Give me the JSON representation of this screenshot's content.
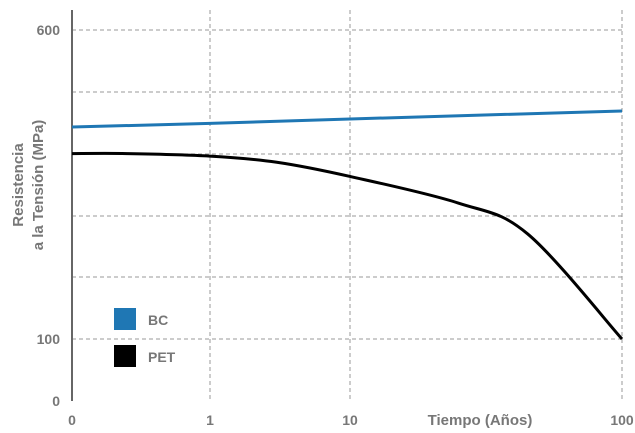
{
  "chart_data": {
    "type": "line",
    "title": "",
    "xlabel": "Tiempo (Años)",
    "ylabel_lines": [
      "Resistencia",
      "a la Tensión (MPa)"
    ],
    "x_scale": "log",
    "x_ticks": [
      {
        "value": 0,
        "label": "0"
      },
      {
        "value": 1,
        "label": "1"
      },
      {
        "value": 10,
        "label": "10"
      },
      {
        "value": 100,
        "label": "100"
      }
    ],
    "y_ticks": [
      {
        "value": 0,
        "label": "0"
      },
      {
        "value": 100,
        "label": "100"
      },
      {
        "value": 600,
        "label": "600"
      }
    ],
    "ylim": [
      0,
      600
    ],
    "grid": true,
    "legend_position": "bottom-left",
    "series": [
      {
        "name": "BC",
        "color": "#1f77b4",
        "points": [
          [
            0,
            443
          ],
          [
            1,
            449
          ],
          [
            10,
            456
          ],
          [
            100,
            469
          ]
        ]
      },
      {
        "name": "PET",
        "color": "#000000",
        "points": [
          [
            0,
            400
          ],
          [
            0.4,
            400
          ],
          [
            1,
            396
          ],
          [
            3,
            386
          ],
          [
            10,
            363
          ],
          [
            25,
            320
          ],
          [
            45,
            270
          ],
          [
            100,
            100
          ]
        ]
      }
    ]
  }
}
